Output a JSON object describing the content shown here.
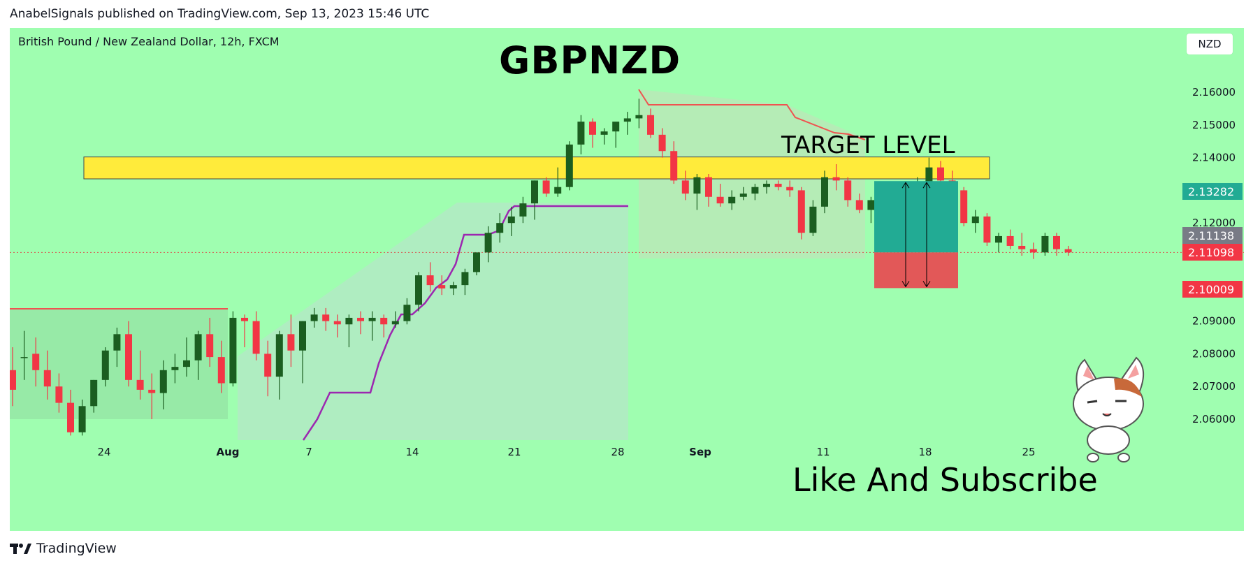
{
  "header": {
    "published": "AnabelSignals published on TradingView.com, Sep 13, 2023 15:46 UTC"
  },
  "chart_header": {
    "symbol_description": "British Pound / New Zealand Dollar, 12h, FXCM"
  },
  "annotations": {
    "title": "GBPNZD",
    "target_label": "TARGET LEVEL",
    "call_to_action": "Like And Subscribe"
  },
  "currency_button": "NZD",
  "price_tags": {
    "target": "2.13282",
    "current_grey": "2.11138",
    "current_red": "2.11098",
    "stop": "2.10009"
  },
  "footer": {
    "brand": "TradingView"
  },
  "colors": {
    "background": "#9ffeb0",
    "bull_candle": "#1b5e20",
    "bear_candle": "#f23645",
    "target_zone": "#ffeb3b",
    "profit_box": "#22ab94",
    "loss_box": "#e25858",
    "kijun_line": "#9c27b0",
    "resistance_line": "#ef5350"
  },
  "chart_data": {
    "type": "candlestick",
    "symbol": "GBPNZD",
    "interval": "12h",
    "exchange": "FXCM",
    "ylim": [
      2.055,
      2.168
    ],
    "y_ticks": [
      "2.16000",
      "2.15000",
      "2.14000",
      "2.13000",
      "2.12000",
      "2.11000",
      "2.10000",
      "2.09000",
      "2.08000",
      "2.07000",
      "2.06000"
    ],
    "x_ticks": [
      "24",
      "Aug",
      "7",
      "14",
      "21",
      "28",
      "Sep",
      "11",
      "18",
      "25"
    ],
    "target_zone": [
      2.1335,
      2.1402
    ],
    "position": {
      "entry": 2.111,
      "target": 2.13282,
      "stop": 2.10009
    },
    "candles": [
      [
        2.075,
        2.082,
        2.064,
        2.069
      ],
      [
        2.079,
        2.087,
        2.072,
        2.079
      ],
      [
        2.08,
        2.085,
        2.07,
        2.075
      ],
      [
        2.075,
        2.081,
        2.066,
        2.07
      ],
      [
        2.07,
        2.074,
        2.062,
        2.065
      ],
      [
        2.065,
        2.069,
        2.055,
        2.056
      ],
      [
        2.056,
        2.066,
        2.055,
        2.064
      ],
      [
        2.064,
        2.072,
        2.062,
        2.072
      ],
      [
        2.072,
        2.082,
        2.07,
        2.081
      ],
      [
        2.081,
        2.088,
        2.076,
        2.086
      ],
      [
        2.086,
        2.09,
        2.07,
        2.072
      ],
      [
        2.072,
        2.081,
        2.066,
        2.069
      ],
      [
        2.069,
        2.074,
        2.06,
        2.068
      ],
      [
        2.068,
        2.078,
        2.063,
        2.075
      ],
      [
        2.075,
        2.08,
        2.071,
        2.076
      ],
      [
        2.076,
        2.085,
        2.073,
        2.078
      ],
      [
        2.078,
        2.087,
        2.072,
        2.086
      ],
      [
        2.086,
        2.091,
        2.076,
        2.079
      ],
      [
        2.079,
        2.084,
        2.068,
        2.071
      ],
      [
        2.071,
        2.093,
        2.07,
        2.091
      ],
      [
        2.091,
        2.092,
        2.082,
        2.09
      ],
      [
        2.09,
        2.093,
        2.078,
        2.08
      ],
      [
        2.08,
        2.084,
        2.067,
        2.073
      ],
      [
        2.073,
        2.087,
        2.066,
        2.086
      ],
      [
        2.086,
        2.092,
        2.076,
        2.081
      ],
      [
        2.081,
        2.09,
        2.071,
        2.09
      ],
      [
        2.09,
        2.094,
        2.088,
        2.092
      ],
      [
        2.092,
        2.094,
        2.087,
        2.09
      ],
      [
        2.09,
        2.092,
        2.085,
        2.089
      ],
      [
        2.089,
        2.092,
        2.082,
        2.091
      ],
      [
        2.091,
        2.093,
        2.086,
        2.09
      ],
      [
        2.09,
        2.093,
        2.084,
        2.091
      ],
      [
        2.091,
        2.092,
        2.085,
        2.089
      ],
      [
        2.089,
        2.093,
        2.088,
        2.09
      ],
      [
        2.09,
        2.097,
        2.089,
        2.095
      ],
      [
        2.095,
        2.105,
        2.093,
        2.104
      ],
      [
        2.104,
        2.108,
        2.099,
        2.101
      ],
      [
        2.101,
        2.104,
        2.098,
        2.1
      ],
      [
        2.1,
        2.102,
        2.098,
        2.101
      ],
      [
        2.101,
        2.106,
        2.098,
        2.105
      ],
      [
        2.105,
        2.111,
        2.104,
        2.111
      ],
      [
        2.111,
        2.119,
        2.108,
        2.117
      ],
      [
        2.117,
        2.123,
        2.114,
        2.12
      ],
      [
        2.12,
        2.125,
        2.116,
        2.122
      ],
      [
        2.122,
        2.128,
        2.12,
        2.126
      ],
      [
        2.126,
        2.133,
        2.121,
        2.133
      ],
      [
        2.133,
        2.134,
        2.128,
        2.129
      ],
      [
        2.129,
        2.137,
        2.128,
        2.131
      ],
      [
        2.131,
        2.145,
        2.13,
        2.144
      ],
      [
        2.144,
        2.153,
        2.141,
        2.151
      ],
      [
        2.151,
        2.152,
        2.143,
        2.147
      ],
      [
        2.147,
        2.149,
        2.144,
        2.148
      ],
      [
        2.148,
        2.15,
        2.143,
        2.151
      ],
      [
        2.151,
        2.154,
        2.147,
        2.152
      ],
      [
        2.152,
        2.158,
        2.149,
        2.153
      ],
      [
        2.153,
        2.155,
        2.146,
        2.147
      ],
      [
        2.147,
        2.149,
        2.14,
        2.142
      ],
      [
        2.142,
        2.145,
        2.132,
        2.133
      ],
      [
        2.133,
        2.136,
        2.127,
        2.129
      ],
      [
        2.129,
        2.135,
        2.124,
        2.134
      ],
      [
        2.134,
        2.135,
        2.125,
        2.128
      ],
      [
        2.128,
        2.132,
        2.125,
        2.126
      ],
      [
        2.126,
        2.13,
        2.124,
        2.128
      ],
      [
        2.128,
        2.131,
        2.127,
        2.129
      ],
      [
        2.129,
        2.132,
        2.127,
        2.131
      ],
      [
        2.131,
        2.133,
        2.129,
        2.132
      ],
      [
        2.132,
        2.133,
        2.13,
        2.131
      ],
      [
        2.131,
        2.133,
        2.128,
        2.13
      ],
      [
        2.13,
        2.131,
        2.115,
        2.117
      ],
      [
        2.117,
        2.127,
        2.116,
        2.125
      ],
      [
        2.125,
        2.136,
        2.123,
        2.134
      ],
      [
        2.134,
        2.138,
        2.13,
        2.133
      ],
      [
        2.133,
        2.134,
        2.125,
        2.127
      ],
      [
        2.127,
        2.129,
        2.123,
        2.124
      ],
      [
        2.124,
        2.128,
        2.12,
        2.127
      ],
      [
        2.127,
        2.128,
        2.112,
        2.115
      ],
      [
        2.115,
        2.126,
        2.114,
        2.124
      ],
      [
        2.124,
        2.127,
        2.121,
        2.125
      ],
      [
        2.125,
        2.134,
        2.123,
        2.132
      ],
      [
        2.132,
        2.14,
        2.13,
        2.137
      ],
      [
        2.137,
        2.139,
        2.131,
        2.133
      ],
      [
        2.133,
        2.136,
        2.128,
        2.13
      ],
      [
        2.13,
        2.131,
        2.119,
        2.12
      ],
      [
        2.12,
        2.124,
        2.117,
        2.122
      ],
      [
        2.122,
        2.123,
        2.113,
        2.114
      ],
      [
        2.114,
        2.117,
        2.111,
        2.116
      ],
      [
        2.116,
        2.118,
        2.112,
        2.113
      ],
      [
        2.113,
        2.117,
        2.11,
        2.112
      ],
      [
        2.112,
        2.114,
        2.109,
        2.111
      ],
      [
        2.111,
        2.117,
        2.11,
        2.116
      ],
      [
        2.116,
        2.117,
        2.11,
        2.112
      ],
      [
        2.112,
        2.113,
        2.11,
        2.111
      ]
    ]
  }
}
